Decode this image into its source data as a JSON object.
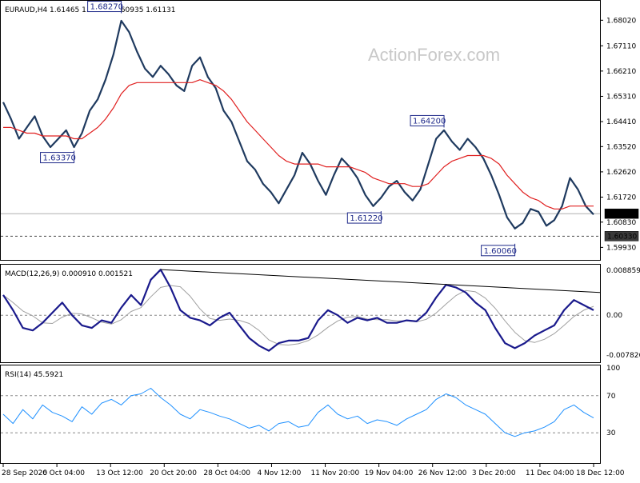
{
  "chart_data": {
    "type": "line",
    "symbol_header": "EURAUD,H4  1.61465  1.61472  1.60935  1.61131",
    "watermark": "ActionForex.com",
    "x_tick_labels": [
      "28 Sep 2020",
      "6 Oct 04:00",
      "13 Oct 12:00",
      "20 Oct 20:00",
      "28 Oct 04:00",
      "4 Nov 12:00",
      "11 Nov 20:00",
      "19 Nov 04:00",
      "26 Nov 12:00",
      "3 Dec 20:00",
      "11 Dec 04:00",
      "18 Dec 12:00"
    ],
    "price_panel": {
      "y_tick_labels": [
        "1.68020",
        "1.67110",
        "1.66210",
        "1.65310",
        "1.64410",
        "1.63520",
        "1.62620",
        "1.61720",
        "1.60830",
        "1.59930"
      ],
      "ylim": [
        1.5957,
        1.6857
      ],
      "current_price": 1.61131,
      "current_price_label": "1.61131",
      "support_level": 1.6033,
      "support_label": "1.60330",
      "annotations": [
        {
          "label": "1.68270",
          "x_label": "19 Oct",
          "value": 1.6827
        },
        {
          "label": "1.63370",
          "x_label": "8 Oct",
          "value": 1.6337
        },
        {
          "label": "1.64200",
          "x_label": "1 Dec",
          "value": 1.642
        },
        {
          "label": "1.61220",
          "x_label": "16 Nov",
          "value": 1.6122
        },
        {
          "label": "1.60060",
          "x_label": "14 Dec",
          "value": 1.6006
        }
      ],
      "series": [
        {
          "name": "",
          "color": "#1f3a5f",
          "values": [
            1.651,
            1.645,
            1.638,
            1.642,
            1.646,
            1.639,
            1.635,
            1.638,
            1.641,
            1.635,
            1.64,
            1.648,
            1.652,
            1.659,
            1.668,
            1.68,
            1.676,
            1.669,
            1.663,
            1.66,
            1.664,
            1.661,
            1.657,
            1.655,
            1.664,
            1.667,
            1.66,
            1.656,
            1.648,
            1.644,
            1.637,
            1.63,
            1.627,
            1.622,
            1.619,
            1.615,
            1.62,
            1.625,
            1.633,
            1.629,
            1.623,
            1.618,
            1.625,
            1.631,
            1.628,
            1.624,
            1.618,
            1.614,
            1.617,
            1.621,
            1.623,
            1.619,
            1.616,
            1.62,
            1.629,
            1.638,
            1.641,
            1.637,
            1.634,
            1.638,
            1.635,
            1.631,
            1.625,
            1.618,
            1.61,
            1.606,
            1.608,
            1.613,
            1.612,
            1.607,
            1.609,
            1.614,
            1.624,
            1.62,
            1.614,
            1.611
          ]
        },
        {
          "name": "",
          "color": "#e02020",
          "values": [
            1.642,
            1.642,
            1.641,
            1.64,
            1.64,
            1.639,
            1.639,
            1.639,
            1.639,
            1.638,
            1.638,
            1.64,
            1.642,
            1.645,
            1.649,
            1.654,
            1.657,
            1.658,
            1.658,
            1.658,
            1.658,
            1.658,
            1.658,
            1.658,
            1.658,
            1.659,
            1.658,
            1.657,
            1.655,
            1.652,
            1.648,
            1.644,
            1.641,
            1.638,
            1.635,
            1.632,
            1.63,
            1.629,
            1.629,
            1.629,
            1.629,
            1.628,
            1.628,
            1.628,
            1.628,
            1.627,
            1.626,
            1.624,
            1.623,
            1.622,
            1.622,
            1.622,
            1.621,
            1.621,
            1.622,
            1.625,
            1.628,
            1.63,
            1.631,
            1.632,
            1.632,
            1.632,
            1.631,
            1.629,
            1.625,
            1.622,
            1.619,
            1.617,
            1.616,
            1.614,
            1.613,
            1.613,
            1.614,
            1.614,
            1.614,
            1.614
          ]
        }
      ]
    },
    "macd_panel": {
      "label": "MACD(12,26,9) 0.000910 0.001521",
      "y_tick_labels": [
        "0.008859",
        "0.00",
        "-0.007826"
      ],
      "ylim": [
        -0.0088,
        0.0095
      ],
      "series": [
        {
          "name": "",
          "color": "#1a1a8c",
          "values": [
            0.004,
            0.001,
            -0.0025,
            -0.003,
            -0.0015,
            0.0005,
            0.0025,
            0.0,
            -0.002,
            -0.0025,
            -0.001,
            -0.0015,
            0.0015,
            0.004,
            0.002,
            0.007,
            0.009,
            0.0055,
            0.001,
            -0.0005,
            -0.001,
            -0.002,
            -0.0005,
            0.0005,
            -0.002,
            -0.0045,
            -0.006,
            -0.007,
            -0.0055,
            -0.005,
            -0.005,
            -0.0045,
            -0.001,
            0.001,
            0.0,
            -0.0015,
            -0.0005,
            -0.001,
            -0.0005,
            -0.0015,
            -0.0015,
            -0.001,
            -0.0012,
            0.0005,
            0.0035,
            0.006,
            0.0055,
            0.0045,
            0.0025,
            0.001,
            -0.0025,
            -0.0055,
            -0.0065,
            -0.0055,
            -0.004,
            -0.003,
            -0.002,
            0.001,
            0.003,
            0.002,
            0.001
          ],
          "x_scale_end": 75
        }
      ],
      "trendline": {
        "from": 0.009,
        "to": 0.0045
      }
    },
    "rsi_panel": {
      "label": "RSI(14) 45.5921",
      "y_tick_labels": [
        "100",
        "70",
        "30",
        "0"
      ],
      "ylim": [
        0,
        100
      ],
      "levels": [
        70,
        30
      ],
      "series": [
        {
          "name": "",
          "color": "#1e90ff",
          "values": [
            50,
            40,
            55,
            45,
            60,
            52,
            48,
            42,
            58,
            50,
            62,
            66,
            60,
            70,
            72,
            78,
            68,
            60,
            50,
            45,
            55,
            52,
            48,
            45,
            40,
            35,
            38,
            32,
            40,
            42,
            36,
            38,
            52,
            60,
            50,
            45,
            48,
            40,
            44,
            42,
            38,
            45,
            50,
            55,
            66,
            72,
            68,
            60,
            55,
            50,
            40,
            30,
            26,
            30,
            32,
            36,
            42,
            55,
            60,
            52,
            46
          ]
        }
      ]
    }
  }
}
